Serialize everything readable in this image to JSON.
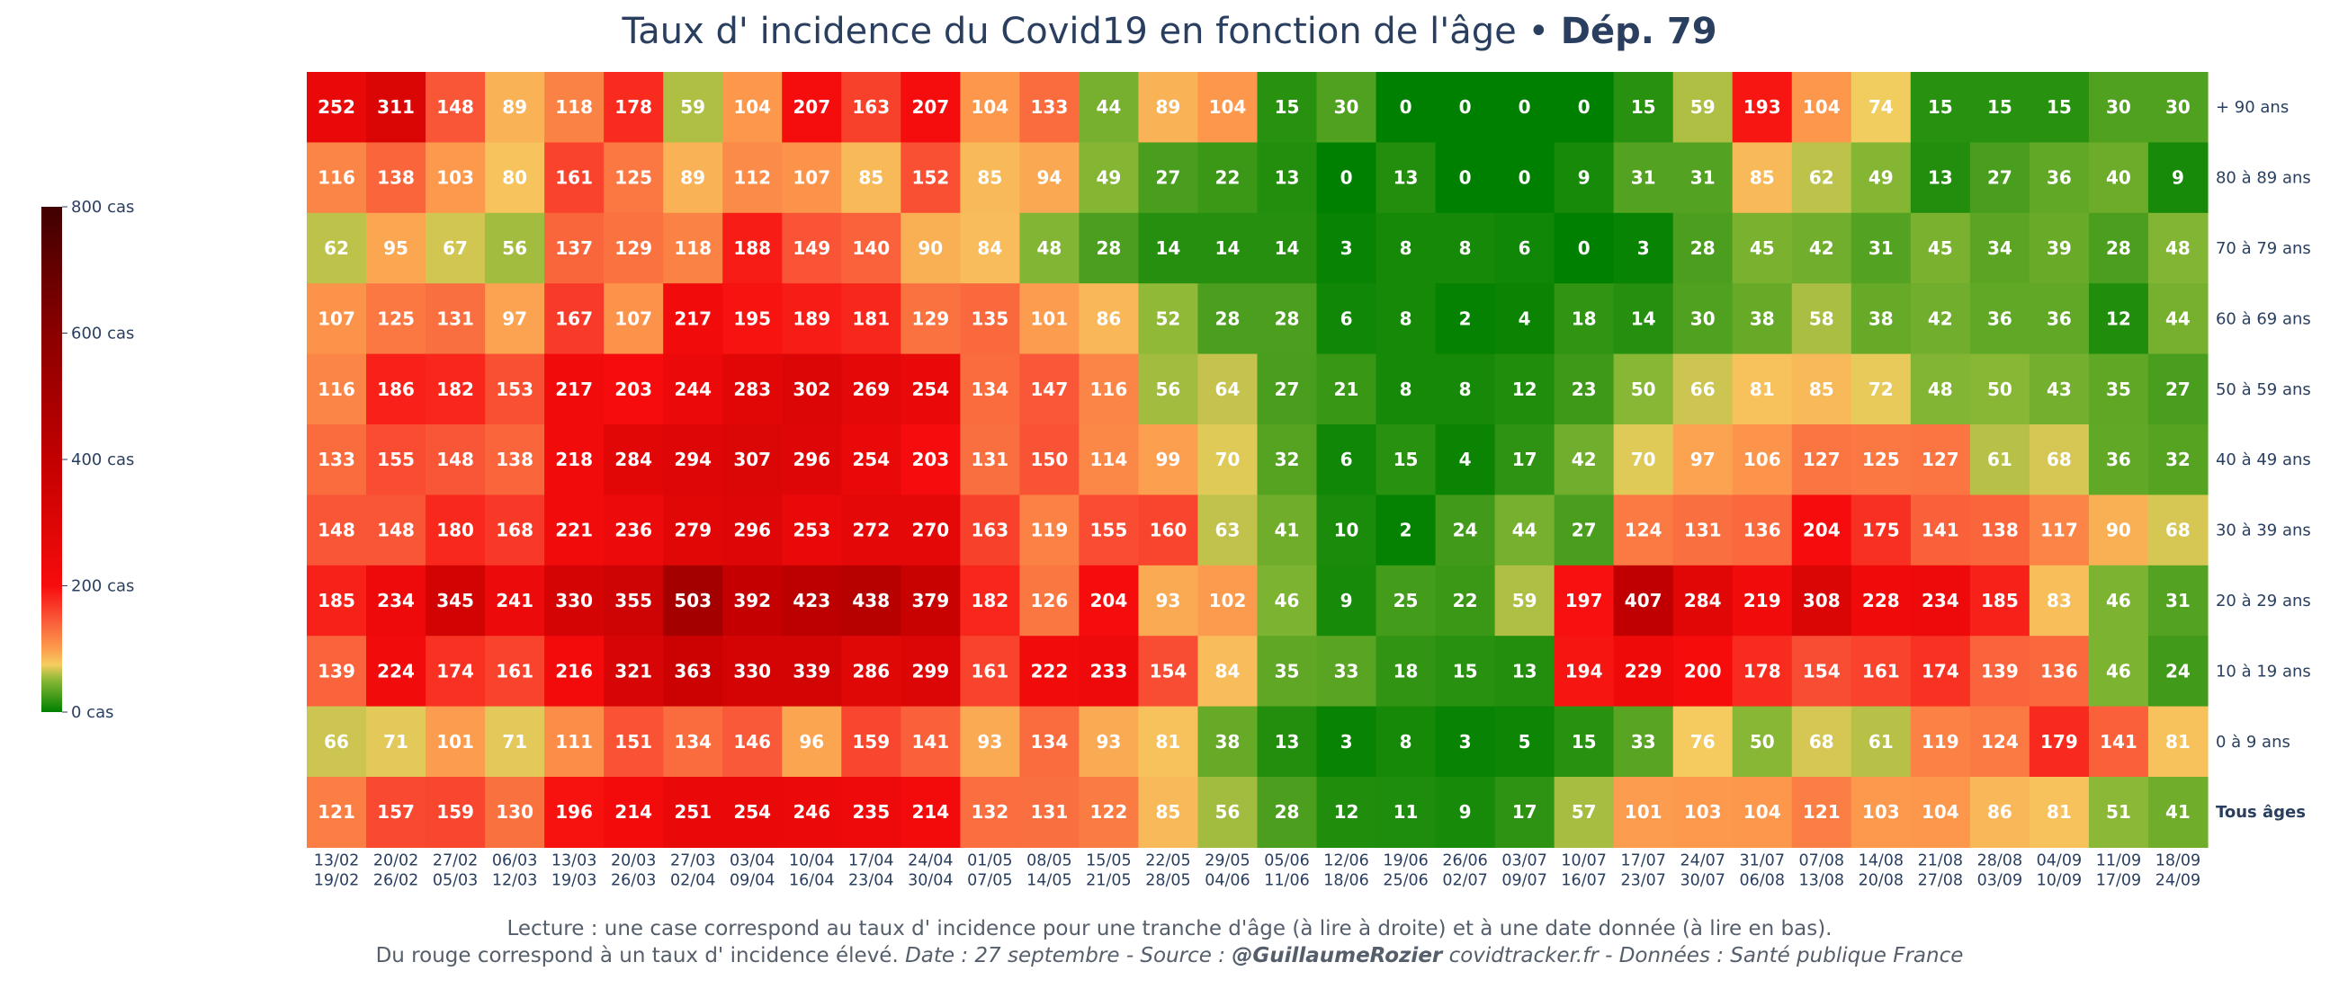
{
  "chart_data": {
    "type": "heatmap",
    "title": "Taux d' incidence du Covid19 en fonction de l'âge",
    "title_separator": " • ",
    "title_bold": "Dép. 79",
    "rows": [
      "+ 90 ans",
      "80 à 89 ans",
      "70 à 79 ans",
      "60 à 69 ans",
      "50 à 59 ans",
      "40 à 49 ans",
      "30 à 39 ans",
      "20 à 29 ans",
      "10 à 19 ans",
      "0 à 9 ans",
      "Tous âges"
    ],
    "columns": [
      {
        "start": "13/02",
        "end": "19/02"
      },
      {
        "start": "20/02",
        "end": "26/02"
      },
      {
        "start": "27/02",
        "end": "05/03"
      },
      {
        "start": "06/03",
        "end": "12/03"
      },
      {
        "start": "13/03",
        "end": "19/03"
      },
      {
        "start": "20/03",
        "end": "26/03"
      },
      {
        "start": "27/03",
        "end": "02/04"
      },
      {
        "start": "03/04",
        "end": "09/04"
      },
      {
        "start": "10/04",
        "end": "16/04"
      },
      {
        "start": "17/04",
        "end": "23/04"
      },
      {
        "start": "24/04",
        "end": "30/04"
      },
      {
        "start": "01/05",
        "end": "07/05"
      },
      {
        "start": "08/05",
        "end": "14/05"
      },
      {
        "start": "15/05",
        "end": "21/05"
      },
      {
        "start": "22/05",
        "end": "28/05"
      },
      {
        "start": "29/05",
        "end": "04/06"
      },
      {
        "start": "05/06",
        "end": "11/06"
      },
      {
        "start": "12/06",
        "end": "18/06"
      },
      {
        "start": "19/06",
        "end": "25/06"
      },
      {
        "start": "26/06",
        "end": "02/07"
      },
      {
        "start": "03/07",
        "end": "09/07"
      },
      {
        "start": "10/07",
        "end": "16/07"
      },
      {
        "start": "17/07",
        "end": "23/07"
      },
      {
        "start": "24/07",
        "end": "30/07"
      },
      {
        "start": "31/07",
        "end": "06/08"
      },
      {
        "start": "07/08",
        "end": "13/08"
      },
      {
        "start": "14/08",
        "end": "20/08"
      },
      {
        "start": "21/08",
        "end": "27/08"
      },
      {
        "start": "28/08",
        "end": "03/09"
      },
      {
        "start": "04/09",
        "end": "10/09"
      },
      {
        "start": "11/09",
        "end": "17/09"
      },
      {
        "start": "18/09",
        "end": "24/09"
      }
    ],
    "values": [
      [
        252,
        311,
        148,
        89,
        118,
        178,
        59,
        104,
        207,
        163,
        207,
        104,
        133,
        44,
        89,
        104,
        15,
        30,
        0,
        0,
        0,
        0,
        15,
        59,
        193,
        104,
        74,
        15,
        15,
        15,
        30,
        30
      ],
      [
        116,
        138,
        103,
        80,
        161,
        125,
        89,
        112,
        107,
        85,
        152,
        85,
        94,
        49,
        27,
        22,
        13,
        0,
        13,
        0,
        0,
        9,
        31,
        31,
        85,
        62,
        49,
        13,
        27,
        36,
        40,
        9
      ],
      [
        62,
        95,
        67,
        56,
        137,
        129,
        118,
        188,
        149,
        140,
        90,
        84,
        48,
        28,
        14,
        14,
        14,
        3,
        8,
        8,
        6,
        0,
        3,
        28,
        45,
        42,
        31,
        45,
        34,
        39,
        28,
        48
      ],
      [
        107,
        125,
        131,
        97,
        167,
        107,
        217,
        195,
        189,
        181,
        129,
        135,
        101,
        86,
        52,
        28,
        28,
        6,
        8,
        2,
        4,
        18,
        14,
        30,
        38,
        58,
        38,
        42,
        36,
        36,
        12,
        44
      ],
      [
        116,
        186,
        182,
        153,
        217,
        203,
        244,
        283,
        302,
        269,
        254,
        134,
        147,
        116,
        56,
        64,
        27,
        21,
        8,
        8,
        12,
        23,
        50,
        66,
        81,
        85,
        72,
        48,
        50,
        43,
        35,
        27
      ],
      [
        133,
        155,
        148,
        138,
        218,
        284,
        294,
        307,
        296,
        254,
        203,
        131,
        150,
        114,
        99,
        70,
        32,
        6,
        15,
        4,
        17,
        42,
        70,
        97,
        106,
        127,
        125,
        127,
        61,
        68,
        36,
        32
      ],
      [
        148,
        148,
        180,
        168,
        221,
        236,
        279,
        296,
        253,
        272,
        270,
        163,
        119,
        155,
        160,
        63,
        41,
        10,
        2,
        24,
        44,
        27,
        124,
        131,
        136,
        204,
        175,
        141,
        138,
        117,
        90,
        68
      ],
      [
        185,
        234,
        345,
        241,
        330,
        355,
        503,
        392,
        423,
        438,
        379,
        182,
        126,
        204,
        93,
        102,
        46,
        9,
        25,
        22,
        59,
        197,
        407,
        284,
        219,
        308,
        228,
        234,
        185,
        83,
        46,
        31
      ],
      [
        139,
        224,
        174,
        161,
        216,
        321,
        363,
        330,
        339,
        286,
        299,
        161,
        222,
        233,
        154,
        84,
        35,
        33,
        18,
        15,
        13,
        194,
        229,
        200,
        178,
        154,
        161,
        174,
        139,
        136,
        46,
        24
      ],
      [
        66,
        71,
        101,
        71,
        111,
        151,
        134,
        146,
        96,
        159,
        141,
        93,
        134,
        93,
        81,
        38,
        13,
        3,
        8,
        3,
        5,
        15,
        33,
        76,
        50,
        68,
        61,
        119,
        124,
        179,
        141,
        81
      ],
      [
        121,
        157,
        159,
        130,
        196,
        214,
        251,
        254,
        246,
        235,
        214,
        132,
        131,
        122,
        85,
        56,
        28,
        12,
        11,
        9,
        17,
        57,
        101,
        103,
        104,
        121,
        103,
        104,
        86,
        81,
        51,
        41
      ]
    ],
    "zmin": 0,
    "zmax": 800,
    "colorscale": [
      [
        0,
        "#008000"
      ],
      [
        0.0625,
        "#87b735"
      ],
      [
        0.09375,
        "#f5cd60"
      ],
      [
        0.125,
        "#fc9d4e"
      ],
      [
        0.1875,
        "#f95336"
      ],
      [
        0.25,
        "#f70c0c"
      ],
      [
        0.5,
        "#c20000"
      ],
      [
        0.75,
        "#8a0000"
      ],
      [
        1,
        "#400000"
      ]
    ],
    "colorbar": {
      "ticks": [
        0,
        200,
        400,
        600,
        800
      ],
      "tick_labels": [
        "0 cas",
        "200 cas",
        "400 cas",
        "600 cas",
        "800 cas"
      ]
    },
    "xlabel": "",
    "ylabel": ""
  },
  "footer": {
    "line1": "Lecture : une case correspond au taux d' incidence pour une tranche d'âge (à lire à droite) et à une date donnée (à lire en bas).",
    "line2_a": "Du rouge correspond à un taux d' incidence élevé.  ",
    "line2_b": "Date : 27 septembre - Source : ",
    "line2_c": "@GuillaumeRozier",
    "line2_d": " covidtracker.fr - Données : Santé publique France"
  }
}
